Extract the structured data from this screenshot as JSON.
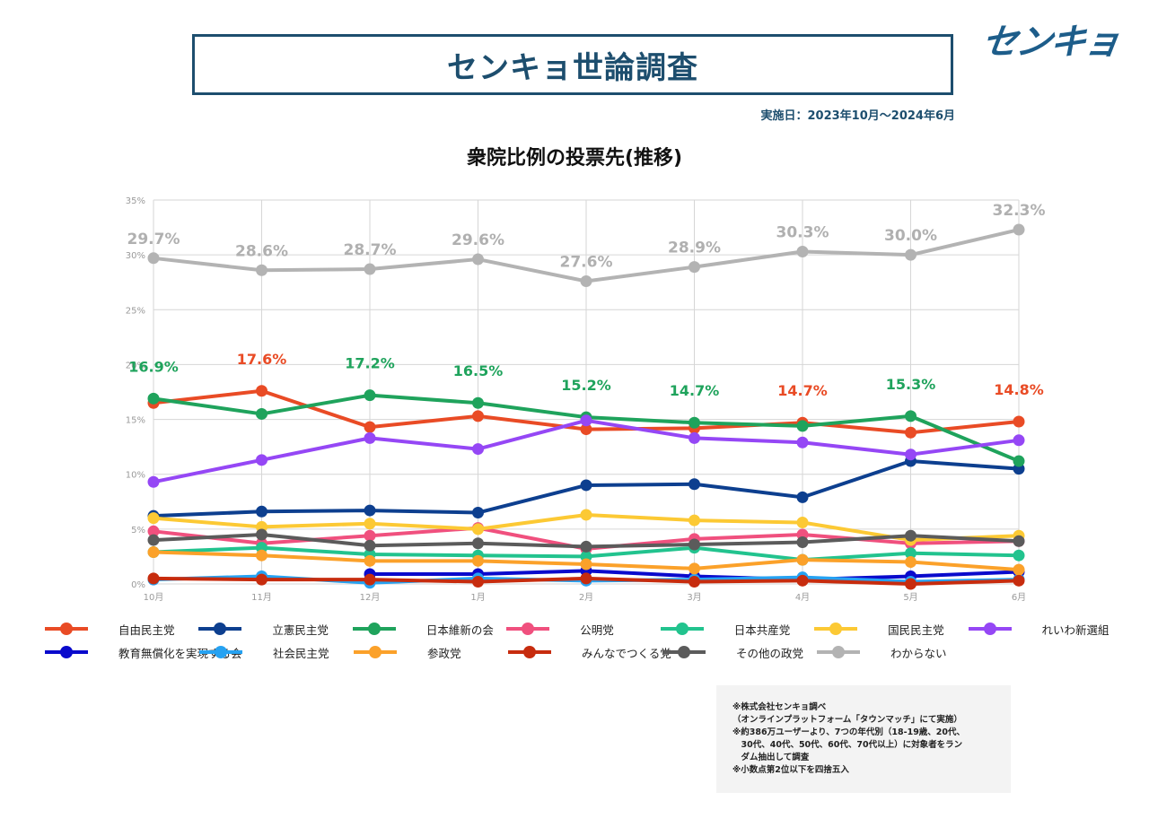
{
  "header": {
    "title": "センキョ世論調査",
    "logo_text": "センキョ",
    "period": "実施日：2023年10月〜2024年6月",
    "colors": {
      "brand": "#1d4e6e",
      "logo": "#1d5d8a"
    }
  },
  "chart_data": {
    "type": "line",
    "title": "衆院比例の投票先(推移)",
    "xlabel": "",
    "ylabel": "",
    "ylim": [
      0,
      35
    ],
    "yticks": [
      "0%",
      "5%",
      "10%",
      "15%",
      "20%",
      "25%",
      "30%",
      "35%"
    ],
    "grid": true,
    "legend_position": "bottom",
    "categories": [
      "10月",
      "11月",
      "12月",
      "1月",
      "2月",
      "3月",
      "4月",
      "5月",
      "6月"
    ],
    "series": [
      {
        "name": "自由民主党",
        "color": "#e94b25",
        "values": [
          16.5,
          17.6,
          14.3,
          15.3,
          14.1,
          14.2,
          14.7,
          13.8,
          14.8
        ]
      },
      {
        "name": "立憲民主党",
        "color": "#0d3f8f",
        "values": [
          6.2,
          6.6,
          6.7,
          6.5,
          9.0,
          9.1,
          7.9,
          11.2,
          10.5
        ]
      },
      {
        "name": "日本維新の会",
        "color": "#1fa35c",
        "values": [
          16.9,
          15.5,
          17.2,
          16.5,
          15.2,
          14.7,
          14.4,
          15.3,
          11.2
        ]
      },
      {
        "name": "公明党",
        "color": "#f0507e",
        "values": [
          4.8,
          3.7,
          4.4,
          5.1,
          3.2,
          4.1,
          4.5,
          3.7,
          3.9
        ]
      },
      {
        "name": "日本共産党",
        "color": "#22c38e",
        "values": [
          2.9,
          3.3,
          2.7,
          2.6,
          2.5,
          3.3,
          2.2,
          2.8,
          2.6
        ]
      },
      {
        "name": "国民民主党",
        "color": "#fcc934",
        "values": [
          6.0,
          5.2,
          5.5,
          5.0,
          6.3,
          5.8,
          5.6,
          4.0,
          4.4
        ]
      },
      {
        "name": "れいわ新選組",
        "color": "#9547f5",
        "values": [
          9.3,
          11.3,
          13.3,
          12.3,
          14.9,
          13.3,
          12.9,
          11.8,
          13.1
        ]
      },
      {
        "name": "教育無償化を実現する会",
        "color": "#0a0acc",
        "values": [
          null,
          null,
          0.9,
          0.9,
          1.2,
          0.7,
          0.4,
          0.7,
          1.1
        ]
      },
      {
        "name": "社会民主党",
        "color": "#26a2f2",
        "values": [
          0.4,
          0.7,
          0.1,
          0.5,
          0.3,
          0.4,
          0.6,
          0.2,
          0.4
        ]
      },
      {
        "name": "参政党",
        "color": "#fba12a",
        "values": [
          2.9,
          2.6,
          2.1,
          2.1,
          1.8,
          1.4,
          2.2,
          2.0,
          1.3
        ]
      },
      {
        "name": "みんなでつくる党",
        "color": "#c72c0e",
        "values": [
          0.5,
          0.4,
          0.4,
          0.2,
          0.5,
          0.2,
          0.3,
          0.0,
          0.3
        ]
      },
      {
        "name": "その他の政党",
        "color": "#5b5b5b",
        "values": [
          4.0,
          4.5,
          3.5,
          3.7,
          3.4,
          3.6,
          3.8,
          4.4,
          3.9
        ]
      },
      {
        "name": "わからない",
        "color": "#b3b3b3",
        "values": [
          29.7,
          28.6,
          28.7,
          29.6,
          27.6,
          28.9,
          30.3,
          30.0,
          32.3
        ]
      }
    ],
    "annotations": {
      "わからない": [
        "29.7%",
        "28.6%",
        "28.7%",
        "29.6%",
        "27.6%",
        "28.9%",
        "30.3%",
        "30.0%",
        "32.3%"
      ],
      "top_party": [
        {
          "label": "16.9%",
          "series": "日本維新の会"
        },
        {
          "label": "17.6%",
          "series": "自由民主党"
        },
        {
          "label": "17.2%",
          "series": "日本維新の会"
        },
        {
          "label": "16.5%",
          "series": "日本維新の会"
        },
        {
          "label": "15.2%",
          "series": "日本維新の会"
        },
        {
          "label": "14.7%",
          "series": "日本維新の会"
        },
        {
          "label": "14.7%",
          "series": "自由民主党"
        },
        {
          "label": "15.3%",
          "series": "日本維新の会"
        },
        {
          "label": "14.8%",
          "series": "自由民主党"
        }
      ]
    }
  },
  "notes": [
    "※株式会社センキョ調べ",
    "（オンラインプラットフォーム「タウンマッチ」にて実施）",
    "※約386万ユーザーより、7つの年代別（18-19歳、20代、",
    "　30代、40代、50代、60代、70代以上）に対象者をラン",
    "　ダム抽出して調査",
    "※小数点第2位以下を四捨五入"
  ]
}
